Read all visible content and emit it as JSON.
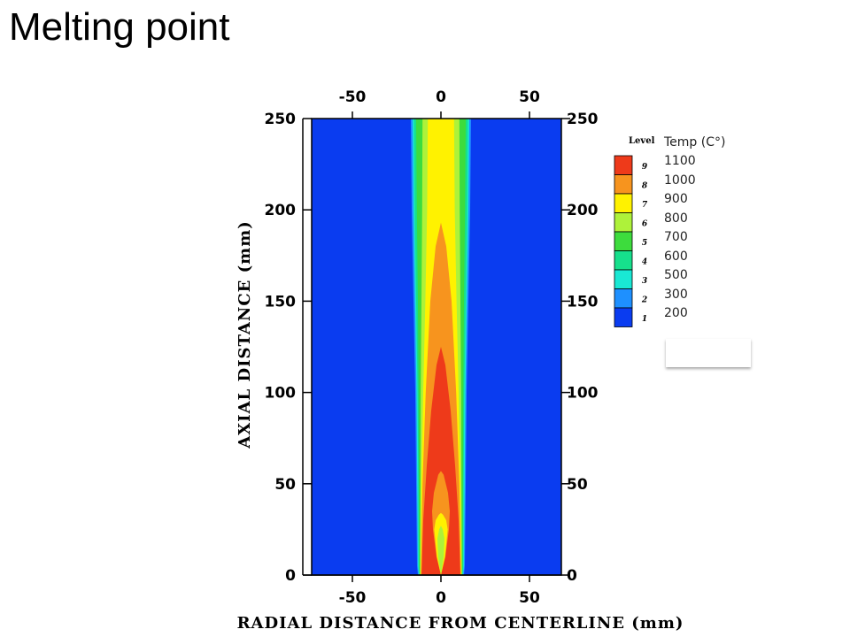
{
  "slide": {
    "title": "Melting point"
  },
  "chart_data": {
    "type": "heatmap",
    "title": "",
    "xlabel": "RADIAL DISTANCE FROM CENTERLINE (mm)",
    "ylabel": "AXIAL DISTANCE (mm)",
    "xlim": [
      -73,
      68
    ],
    "ylim": [
      0,
      250
    ],
    "x_ticks": [
      -50,
      0,
      50
    ],
    "y_ticks": [
      0,
      50,
      100,
      150,
      200,
      250
    ],
    "legend_header": "Level",
    "legend_title": "Temp (C°)",
    "levels": [
      {
        "level": 9,
        "temp": "1100",
        "color": "#ee3a1a"
      },
      {
        "level": 8,
        "temp": "1000",
        "color": "#f7941e"
      },
      {
        "level": 7,
        "temp": "900",
        "color": "#fff200"
      },
      {
        "level": 6,
        "temp": "800",
        "color": "#aef23a"
      },
      {
        "level": 5,
        "temp": "700",
        "color": "#3ddc3d"
      },
      {
        "level": 4,
        "temp": "600",
        "color": "#16e08c"
      },
      {
        "level": 3,
        "temp": "500",
        "color": "#19e8d4"
      },
      {
        "level": 2,
        "temp": "300",
        "color": "#1e90ff"
      },
      {
        "level": 1,
        "temp": "200",
        "color": "#0a3cf0"
      }
    ],
    "contour_half_widths": [
      {
        "level": 2,
        "points": [
          [
            0,
            13.0
          ],
          [
            5,
            13.5
          ],
          [
            50,
            14.0
          ],
          [
            100,
            14.5
          ],
          [
            150,
            15.5
          ],
          [
            200,
            16.5
          ],
          [
            250,
            17.0
          ]
        ]
      },
      {
        "level": 3,
        "points": [
          [
            0,
            12.5
          ],
          [
            5,
            13.0
          ],
          [
            50,
            13.4
          ],
          [
            100,
            13.8
          ],
          [
            150,
            14.6
          ],
          [
            200,
            15.5
          ],
          [
            250,
            16.0
          ]
        ]
      },
      {
        "level": 4,
        "points": [
          [
            0,
            12.2
          ],
          [
            5,
            12.6
          ],
          [
            50,
            12.8
          ],
          [
            100,
            13.2
          ],
          [
            150,
            14.0
          ],
          [
            200,
            14.8
          ],
          [
            250,
            15.2
          ]
        ]
      },
      {
        "level": 5,
        "points": [
          [
            0,
            12.0
          ],
          [
            5,
            12.2
          ],
          [
            50,
            12.4
          ],
          [
            100,
            12.6
          ],
          [
            150,
            13.0
          ],
          [
            200,
            13.6
          ],
          [
            250,
            14.0
          ]
        ]
      },
      {
        "level": 6,
        "points": [
          [
            0,
            11.8
          ],
          [
            5,
            11.8
          ],
          [
            50,
            11.6
          ],
          [
            100,
            11.4
          ],
          [
            150,
            11.0
          ],
          [
            200,
            10.6
          ],
          [
            250,
            10.4
          ]
        ]
      },
      {
        "level": 7,
        "points": [
          [
            0,
            11.6
          ],
          [
            5,
            11.5
          ],
          [
            50,
            11.0
          ],
          [
            100,
            10.0
          ],
          [
            150,
            8.8
          ],
          [
            200,
            7.8
          ],
          [
            250,
            7.4
          ]
        ]
      },
      {
        "level": 8,
        "points": [
          [
            0,
            11.3
          ],
          [
            5,
            11.2
          ],
          [
            50,
            10.4
          ],
          [
            100,
            8.6
          ],
          [
            150,
            6.0
          ],
          [
            180,
            3.0
          ],
          [
            193,
            0
          ]
        ]
      },
      {
        "level": 9,
        "points": [
          [
            0,
            11.0
          ],
          [
            5,
            10.8
          ],
          [
            30,
            10.0
          ],
          [
            60,
            8.0
          ],
          [
            90,
            5.5
          ],
          [
            115,
            2.5
          ],
          [
            125,
            0
          ]
        ]
      }
    ],
    "cold_core": [
      {
        "level": 9,
        "points": [
          [
            0,
            0
          ],
          [
            10,
            2.5
          ],
          [
            25,
            4.5
          ],
          [
            35,
            5.0
          ],
          [
            45,
            4.0
          ],
          [
            55,
            1.5
          ],
          [
            57,
            0
          ]
        ]
      },
      {
        "level": 8,
        "points": [
          [
            0,
            0
          ],
          [
            10,
            2.3
          ],
          [
            25,
            3.8
          ],
          [
            30,
            3.0
          ],
          [
            33,
            1.2
          ],
          [
            34,
            0
          ]
        ]
      },
      {
        "level": 7,
        "points": [
          [
            0,
            0
          ],
          [
            10,
            1.6
          ],
          [
            20,
            2.0
          ],
          [
            25,
            1.0
          ],
          [
            27,
            0
          ]
        ]
      }
    ]
  }
}
